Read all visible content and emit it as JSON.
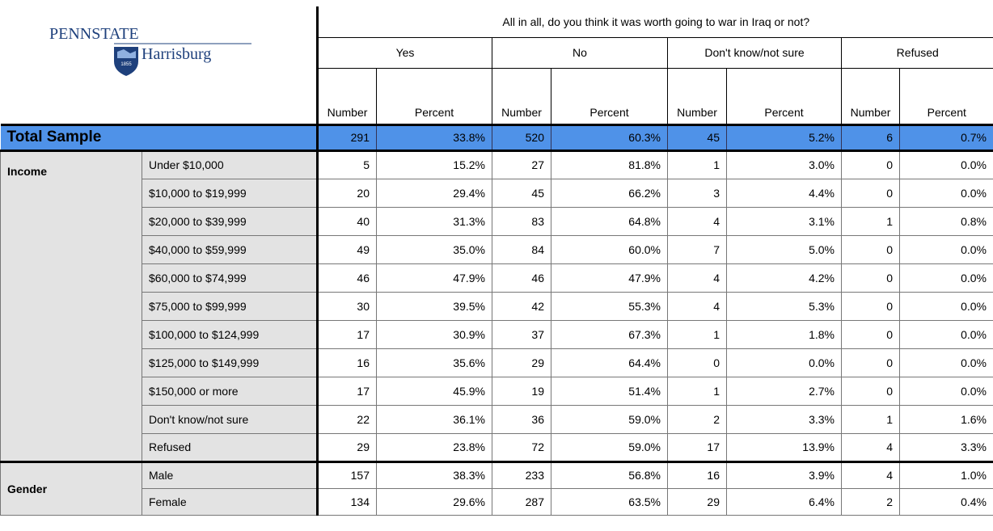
{
  "header": {
    "logo": {
      "name": "PENNSTATE",
      "campus": "Harrisburg",
      "year": "1855"
    },
    "question": "All in all, do you think it was worth going to war in Iraq or not?",
    "responses": [
      "Yes",
      "No",
      "Don't know/not sure",
      "Refused"
    ],
    "subheaders": [
      "Number",
      "Percent",
      "Number",
      "Percent",
      "Number",
      "Percent",
      "Number",
      "Percent"
    ]
  },
  "total": {
    "label": "Total Sample",
    "cells": [
      "291",
      "33.8%",
      "520",
      "60.3%",
      "45",
      "5.2%",
      "6",
      "0.7%"
    ]
  },
  "groups": [
    {
      "label": "Income",
      "rows": [
        {
          "label": "Under $10,000",
          "cells": [
            "5",
            "15.2%",
            "27",
            "81.8%",
            "1",
            "3.0%",
            "0",
            "0.0%"
          ]
        },
        {
          "label": "$10,000 to $19,999",
          "cells": [
            "20",
            "29.4%",
            "45",
            "66.2%",
            "3",
            "4.4%",
            "0",
            "0.0%"
          ]
        },
        {
          "label": "$20,000 to $39,999",
          "cells": [
            "40",
            "31.3%",
            "83",
            "64.8%",
            "4",
            "3.1%",
            "1",
            "0.8%"
          ]
        },
        {
          "label": "$40,000 to $59,999",
          "cells": [
            "49",
            "35.0%",
            "84",
            "60.0%",
            "7",
            "5.0%",
            "0",
            "0.0%"
          ]
        },
        {
          "label": "$60,000 to $74,999",
          "cells": [
            "46",
            "47.9%",
            "46",
            "47.9%",
            "4",
            "4.2%",
            "0",
            "0.0%"
          ]
        },
        {
          "label": "$75,000 to $99,999",
          "cells": [
            "30",
            "39.5%",
            "42",
            "55.3%",
            "4",
            "5.3%",
            "0",
            "0.0%"
          ]
        },
        {
          "label": "$100,000 to $124,999",
          "cells": [
            "17",
            "30.9%",
            "37",
            "67.3%",
            "1",
            "1.8%",
            "0",
            "0.0%"
          ]
        },
        {
          "label": "$125,000 to $149,999",
          "cells": [
            "16",
            "35.6%",
            "29",
            "64.4%",
            "0",
            "0.0%",
            "0",
            "0.0%"
          ]
        },
        {
          "label": "$150,000 or more",
          "cells": [
            "17",
            "45.9%",
            "19",
            "51.4%",
            "1",
            "2.7%",
            "0",
            "0.0%"
          ]
        },
        {
          "label": "Don't know/not sure",
          "cells": [
            "22",
            "36.1%",
            "36",
            "59.0%",
            "2",
            "3.3%",
            "1",
            "1.6%"
          ]
        },
        {
          "label": "Refused",
          "cells": [
            "29",
            "23.8%",
            "72",
            "59.0%",
            "17",
            "13.9%",
            "4",
            "3.3%"
          ]
        }
      ]
    },
    {
      "label": "Gender",
      "rows": [
        {
          "label": "Male",
          "cells": [
            "157",
            "38.3%",
            "233",
            "56.8%",
            "16",
            "3.9%",
            "4",
            "1.0%"
          ]
        },
        {
          "label": "Female",
          "cells": [
            "134",
            "29.6%",
            "287",
            "63.5%",
            "29",
            "6.4%",
            "2",
            "0.4%"
          ]
        }
      ]
    }
  ]
}
